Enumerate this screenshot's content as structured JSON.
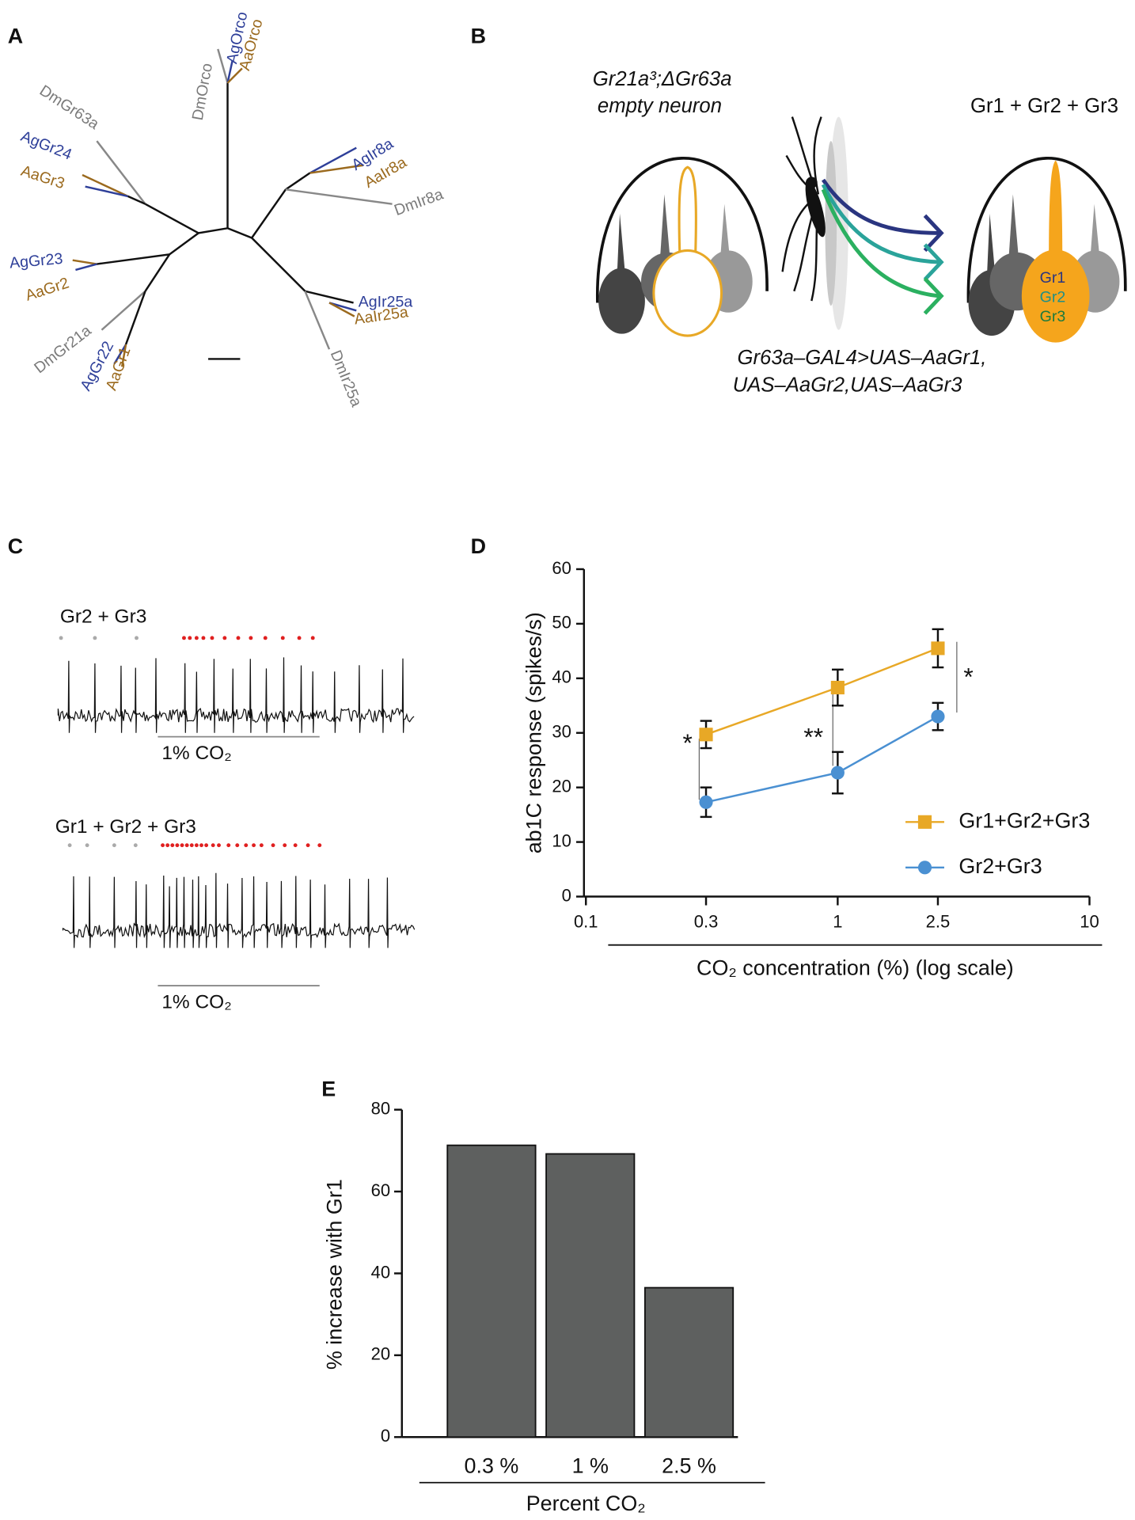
{
  "panels": {
    "a": {
      "letter": "A",
      "labels": [
        {
          "text": "DmOrco",
          "color": "#7a7a7a"
        },
        {
          "text": "AgOrco",
          "color": "#2e3f99"
        },
        {
          "text": "AaOrco",
          "color": "#9b6a1e"
        },
        {
          "text": "DmGr63a",
          "color": "#7a7a7a"
        },
        {
          "text": "AgGr24",
          "color": "#2e3f99"
        },
        {
          "text": "AaGr3",
          "color": "#9b6a1e"
        },
        {
          "text": "AgGr23",
          "color": "#2e3f99"
        },
        {
          "text": "AaGr2",
          "color": "#9b6a1e"
        },
        {
          "text": "DmGr21a",
          "color": "#7a7a7a"
        },
        {
          "text": "AgGr22",
          "color": "#2e3f99"
        },
        {
          "text": "AaGr1",
          "color": "#9b6a1e"
        },
        {
          "text": "AgIr8a",
          "color": "#2e3f99"
        },
        {
          "text": "AaIr8a",
          "color": "#9b6a1e"
        },
        {
          "text": "DmIr8a",
          "color": "#7a7a7a"
        },
        {
          "text": "AgIr25a",
          "color": "#2e3f99"
        },
        {
          "text": "AaIr25a",
          "color": "#9b6a1e"
        },
        {
          "text": "DmIr25a",
          "color": "#7a7a7a"
        }
      ]
    },
    "b": {
      "letter": "B",
      "genotype": "Gr21a³;ΔGr63a",
      "empty": "empty neuron",
      "rescue": "Gr1 + Gr2 + Gr3",
      "construct": [
        "Gr63a–GAL4>UAS–AaGr1,",
        "UAS–AaGr2,UAS–AaGr3"
      ],
      "receptors": [
        "Gr1",
        "Gr2",
        "Gr3"
      ]
    },
    "c": {
      "letter": "C",
      "traces": [
        {
          "label": "Gr2 + Gr3",
          "stimulus": "1% CO₂"
        },
        {
          "label": "Gr1 + Gr2  + Gr3",
          "stimulus": "1% CO₂"
        }
      ]
    },
    "d": {
      "letter": "D"
    },
    "e": {
      "letter": "E"
    }
  },
  "chart_data": [
    {
      "type": "line",
      "x": [
        0.3,
        1,
        2.5
      ],
      "xscale": "log",
      "xlim": [
        0.1,
        10
      ],
      "xticks": [
        0.1,
        0.3,
        1,
        2.5,
        10
      ],
      "ylim": [
        0,
        60
      ],
      "yticks": [
        0,
        10,
        20,
        30,
        40,
        50,
        60
      ],
      "xlabel": "CO₂ concentration (%) (log scale)",
      "ylabel": "ab1C response  (spikes/s)",
      "legend": "lower right",
      "series": [
        {
          "name": "Gr1+Gr2+Gr3",
          "color": "#e8a826",
          "marker": "square",
          "values": [
            29.7,
            38.3,
            45.5
          ],
          "errors": [
            2.5,
            3.3,
            3.5
          ]
        },
        {
          "name": "Gr2+Gr3",
          "color": "#4a90d2",
          "marker": "circle",
          "values": [
            17.3,
            22.7,
            33
          ],
          "errors": [
            2.7,
            3.8,
            2.5
          ]
        }
      ],
      "annotations": [
        "*",
        "**",
        "*"
      ]
    },
    {
      "type": "bar",
      "categories": [
        "0.3 %",
        "1 %",
        "2.5 %"
      ],
      "values": [
        71.3,
        69.2,
        36.5
      ],
      "color": "#5e605f",
      "ylim": [
        0,
        80
      ],
      "yticks": [
        0,
        20,
        40,
        60,
        80
      ],
      "xlabel": "Percent CO₂",
      "ylabel": "% increase with Gr1"
    }
  ]
}
